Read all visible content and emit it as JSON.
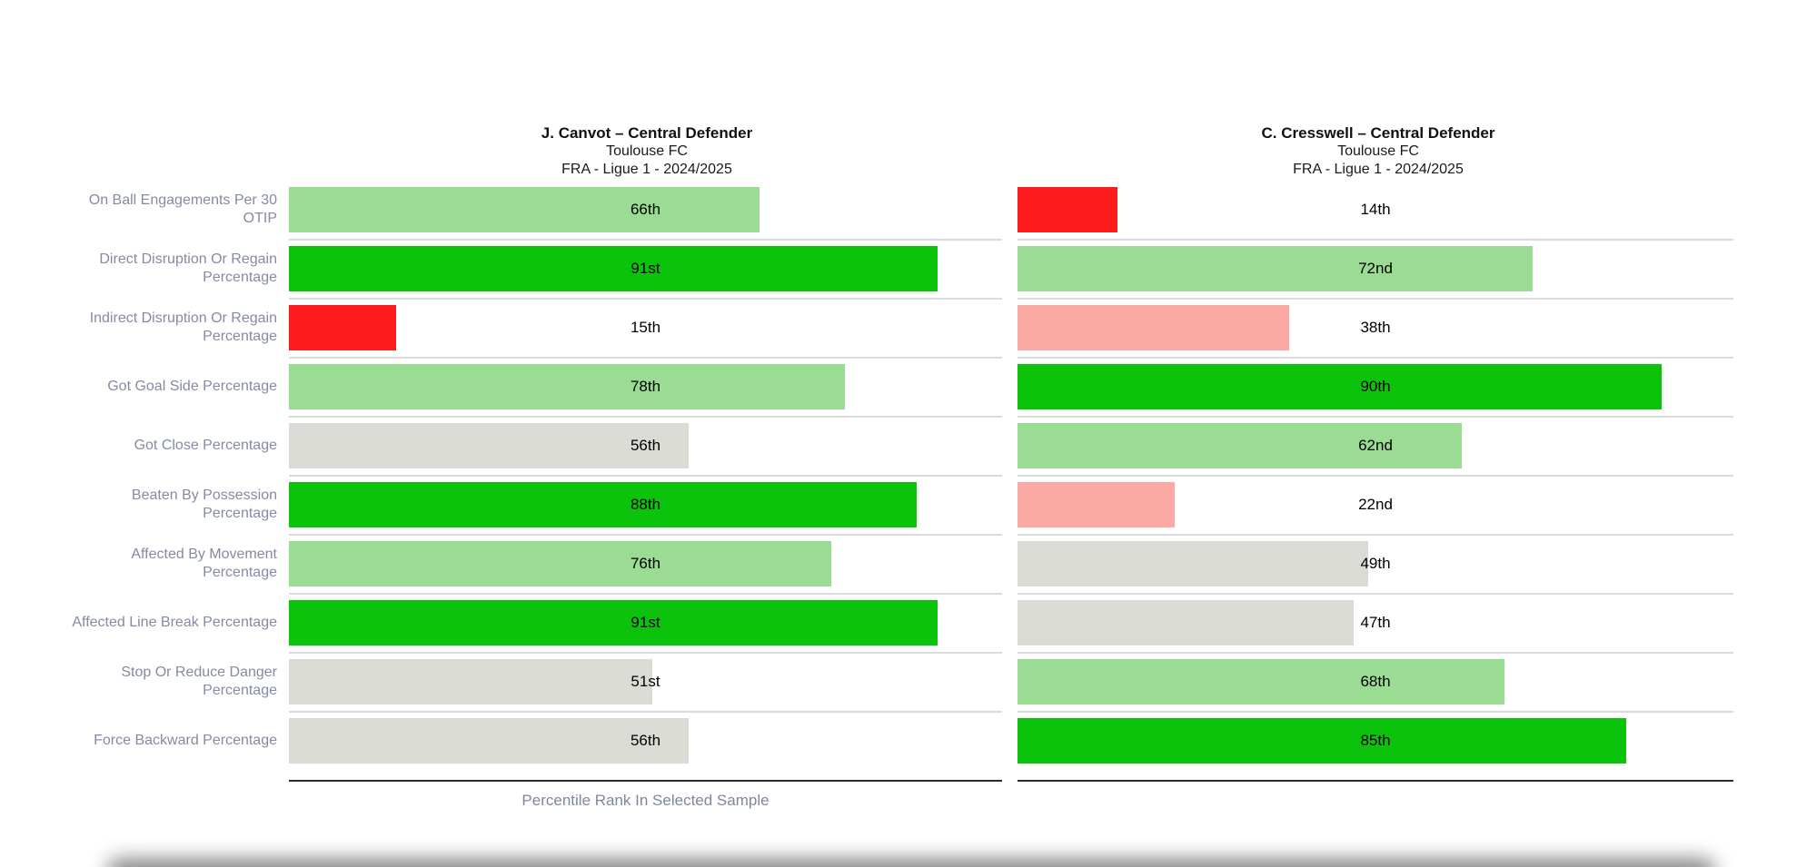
{
  "colors": {
    "bright_green": "#0BC30B",
    "light_green": "#9ADC93",
    "neutral_gray": "#DBDBD5",
    "pink": "#FCA8A3",
    "red": "#FB1B1B",
    "row_label": "#848BA3",
    "separator": "#DBDBDB",
    "axis_line": "#2B2B2B"
  },
  "chart_data": {
    "type": "bar",
    "orientation": "horizontal",
    "value_axis": {
      "min": 0,
      "max": 100,
      "unit": "percentile"
    },
    "legend": "none",
    "grid": "row-separators",
    "xlabel": "Percentile Rank In Selected Sample",
    "categories": [
      "On Ball Engagements Per 30 OTIP",
      "Direct Disruption Or Regain Percentage",
      "Indirect Disruption Or Regain Percentage",
      "Got Goal Side Percentage",
      "Got Close Percentage",
      "Beaten By Possession Percentage",
      "Affected By Movement Percentage",
      "Affected Line Break Percentage",
      "Stop Or Reduce Danger Percentage",
      "Force Backward Percentage"
    ],
    "series": [
      {
        "title": "J. Canvot – Central Defender",
        "subtitle": "Toulouse FC",
        "competition": "FRA - Ligue 1 - 2024/2025",
        "values": [
          66,
          91,
          15,
          78,
          56,
          88,
          76,
          91,
          51,
          56
        ],
        "value_labels": [
          "66th",
          "91st",
          "15th",
          "78th",
          "56th",
          "88th",
          "76th",
          "91st",
          "51st",
          "56th"
        ],
        "bar_colors": [
          "light_green",
          "bright_green",
          "red",
          "light_green",
          "neutral_gray",
          "bright_green",
          "light_green",
          "bright_green",
          "neutral_gray",
          "neutral_gray"
        ]
      },
      {
        "title": "C. Cresswell – Central Defender",
        "subtitle": "Toulouse FC",
        "competition": "FRA - Ligue 1 - 2024/2025",
        "values": [
          14,
          72,
          38,
          90,
          62,
          22,
          49,
          47,
          68,
          85
        ],
        "value_labels": [
          "14th",
          "72nd",
          "38th",
          "90th",
          "62nd",
          "22nd",
          "49th",
          "47th",
          "68th",
          "85th"
        ],
        "bar_colors": [
          "red",
          "light_green",
          "pink",
          "bright_green",
          "light_green",
          "pink",
          "neutral_gray",
          "neutral_gray",
          "light_green",
          "bright_green"
        ]
      }
    ]
  }
}
